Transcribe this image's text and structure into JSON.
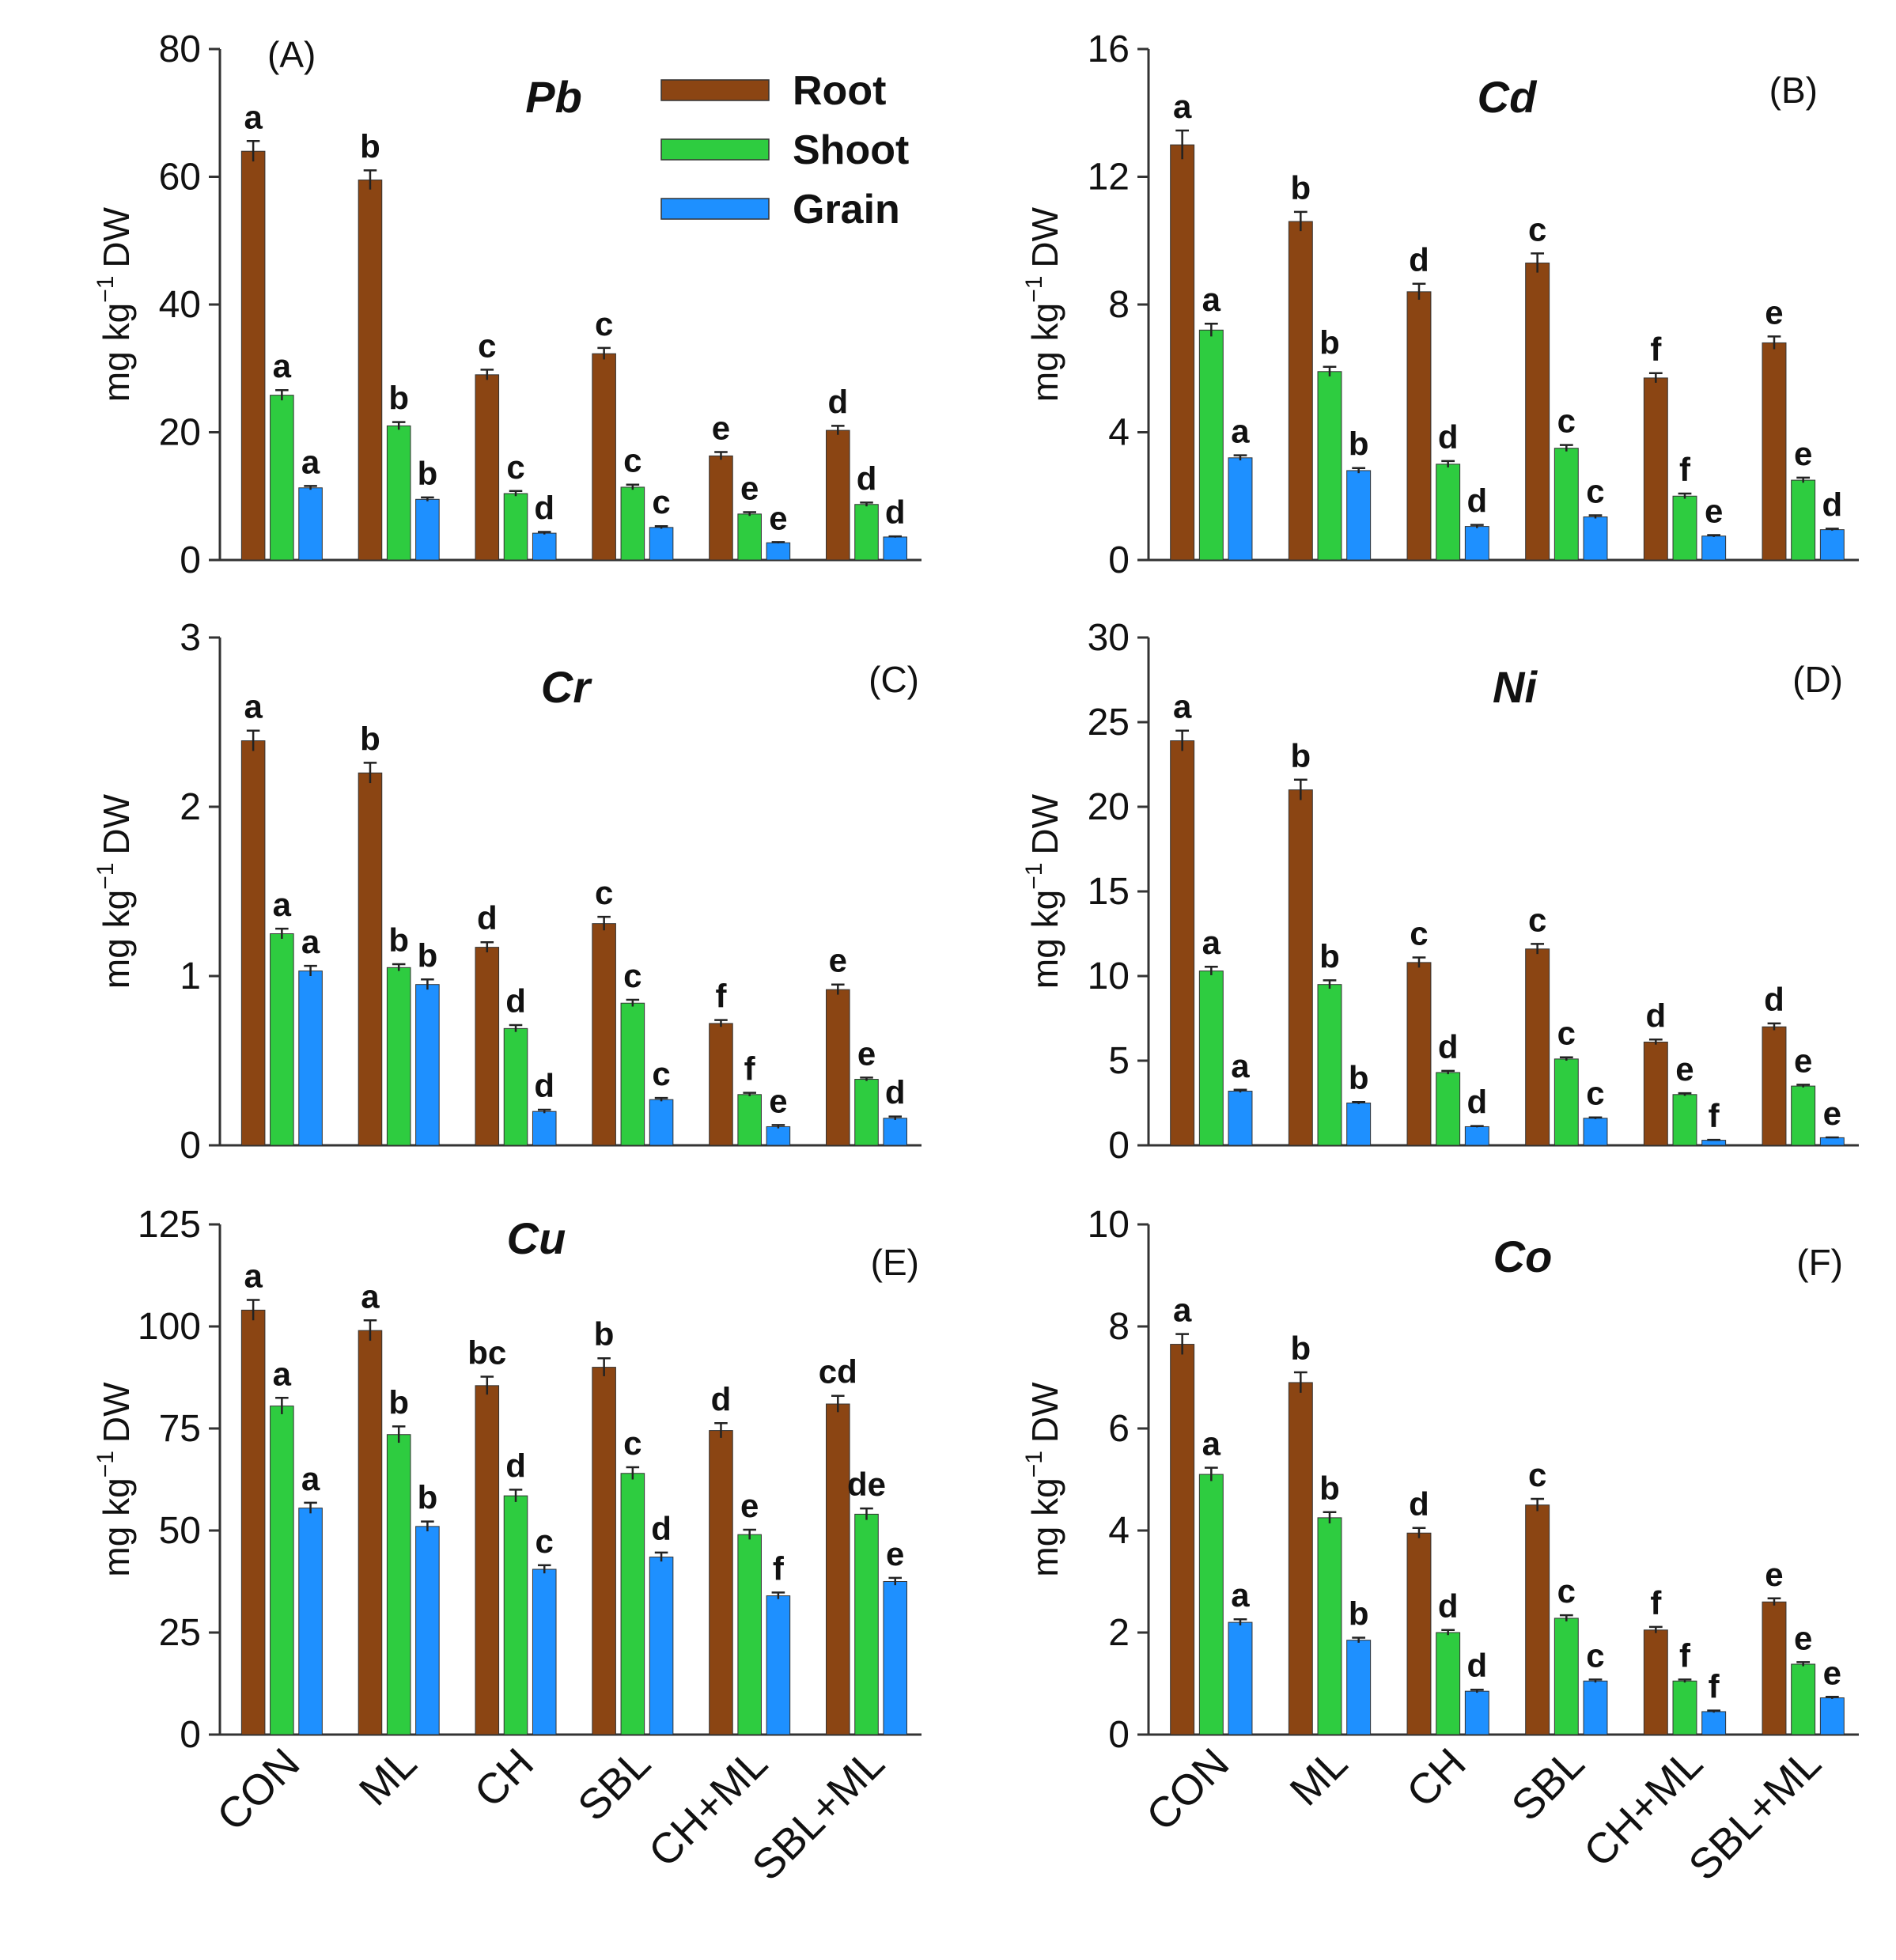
{
  "colors": {
    "Root": "#8B4513",
    "Shoot": "#2ECC40",
    "Grain": "#1E90FF",
    "axis": "#333333",
    "errorbar": "#222222"
  },
  "legend": {
    "placement": "top-right of panel A",
    "entries": [
      "Root",
      "Shoot",
      "Grain"
    ]
  },
  "x_categories": [
    "CON",
    "ML",
    "CH",
    "SBL",
    "CH+ML",
    "SBL+ML"
  ],
  "chart_data": [
    {
      "type": "bar",
      "panel": "(A)",
      "title": "Pb",
      "ylabel": "mg kg-1 DW",
      "ylabel_main": "mg kg",
      "ylabel_sup": "−1",
      "ylabel_tail": "DW",
      "ylim": [
        0,
        80
      ],
      "yticks": [
        0,
        20,
        40,
        60,
        80
      ],
      "categories": [
        "CON",
        "ML",
        "CH",
        "SBL",
        "CH+ML",
        "SBL+ML"
      ],
      "series": [
        {
          "name": "Root",
          "values": [
            64,
            59.5,
            29,
            32.3,
            16.3,
            20.3
          ],
          "errors": [
            1.6,
            1.5,
            0.8,
            0.9,
            0.6,
            0.7
          ],
          "letters": [
            "a",
            "b",
            "c",
            "c",
            "e",
            "d"
          ]
        },
        {
          "name": "Shoot",
          "values": [
            25.8,
            21,
            10.4,
            11.4,
            7.2,
            8.7
          ],
          "errors": [
            0.8,
            0.6,
            0.4,
            0.4,
            0.3,
            0.3
          ],
          "letters": [
            "a",
            "b",
            "c",
            "c",
            "e",
            "d"
          ]
        },
        {
          "name": "Grain",
          "values": [
            11.3,
            9.5,
            4.2,
            5.1,
            2.7,
            3.6
          ],
          "errors": [
            0.3,
            0.3,
            0.2,
            0.2,
            0.1,
            0.1
          ],
          "letters": [
            "a",
            "b",
            "d",
            "c",
            "e",
            "d"
          ]
        }
      ]
    },
    {
      "type": "bar",
      "panel": "(B)",
      "title": "Cd",
      "ylabel": "mg kg-1 DW",
      "ylabel_main": "mg kg",
      "ylabel_sup": "−1",
      "ylabel_tail": "DW",
      "ylim": [
        0,
        16
      ],
      "yticks": [
        0,
        4,
        8,
        12,
        16
      ],
      "categories": [
        "CON",
        "ML",
        "CH",
        "SBL",
        "CH+ML",
        "SBL+ML"
      ],
      "series": [
        {
          "name": "Root",
          "values": [
            13,
            10.6,
            8.4,
            9.3,
            5.7,
            6.8
          ],
          "errors": [
            0.45,
            0.3,
            0.25,
            0.3,
            0.15,
            0.2
          ],
          "letters": [
            "a",
            "b",
            "d",
            "c",
            "f",
            "e"
          ]
        },
        {
          "name": "Shoot",
          "values": [
            7.2,
            5.9,
            3,
            3.5,
            2,
            2.5
          ],
          "errors": [
            0.2,
            0.15,
            0.1,
            0.1,
            0.08,
            0.08
          ],
          "letters": [
            "a",
            "b",
            "d",
            "c",
            "f",
            "e"
          ]
        },
        {
          "name": "Grain",
          "values": [
            3.2,
            2.8,
            1.05,
            1.35,
            0.75,
            0.95
          ],
          "errors": [
            0.08,
            0.08,
            0.05,
            0.05,
            0.03,
            0.03
          ],
          "letters": [
            "a",
            "b",
            "d",
            "c",
            "e",
            "d"
          ]
        }
      ]
    },
    {
      "type": "bar",
      "panel": "(C)",
      "title": "Cr",
      "ylabel": "mg kg-1 DW",
      "ylabel_main": "mg kg",
      "ylabel_sup": "−1",
      "ylabel_tail": "DW",
      "ylim": [
        0,
        3
      ],
      "yticks": [
        0,
        1,
        2,
        3
      ],
      "categories": [
        "CON",
        "ML",
        "CH",
        "SBL",
        "CH+ML",
        "SBL+ML"
      ],
      "series": [
        {
          "name": "Root",
          "values": [
            2.39,
            2.2,
            1.17,
            1.31,
            0.72,
            0.92
          ],
          "errors": [
            0.06,
            0.06,
            0.03,
            0.04,
            0.02,
            0.03
          ],
          "letters": [
            "a",
            "b",
            "d",
            "c",
            "f",
            "e"
          ]
        },
        {
          "name": "Shoot",
          "values": [
            1.25,
            1.05,
            0.69,
            0.84,
            0.3,
            0.39
          ],
          "errors": [
            0.03,
            0.02,
            0.02,
            0.02,
            0.01,
            0.01
          ],
          "letters": [
            "a",
            "b",
            "d",
            "c",
            "f",
            "e"
          ]
        },
        {
          "name": "Grain",
          "values": [
            1.03,
            0.95,
            0.2,
            0.27,
            0.11,
            0.16
          ],
          "errors": [
            0.03,
            0.03,
            0.01,
            0.01,
            0.01,
            0.01
          ],
          "letters": [
            "a",
            "b",
            "d",
            "c",
            "e",
            "d"
          ]
        }
      ]
    },
    {
      "type": "bar",
      "panel": "(D)",
      "title": "Ni",
      "ylabel": "mg kg-1 DW",
      "ylabel_main": "mg kg",
      "ylabel_sup": "−1",
      "ylabel_tail": "DW",
      "ylim": [
        0,
        30
      ],
      "yticks": [
        0,
        5,
        10,
        15,
        20,
        25,
        30
      ],
      "categories": [
        "CON",
        "ML",
        "CH",
        "SBL",
        "CH+ML",
        "SBL+ML"
      ],
      "series": [
        {
          "name": "Root",
          "values": [
            23.9,
            21,
            10.8,
            11.6,
            6.1,
            7
          ],
          "errors": [
            0.6,
            0.6,
            0.3,
            0.3,
            0.15,
            0.2
          ],
          "letters": [
            "a",
            "b",
            "c",
            "c",
            "d",
            "d"
          ]
        },
        {
          "name": "Shoot",
          "values": [
            10.3,
            9.5,
            4.3,
            5.1,
            3,
            3.5
          ],
          "errors": [
            0.25,
            0.25,
            0.1,
            0.1,
            0.08,
            0.08
          ],
          "letters": [
            "a",
            "b",
            "d",
            "c",
            "e",
            "e"
          ]
        },
        {
          "name": "Grain",
          "values": [
            3.2,
            2.5,
            1.1,
            1.6,
            0.3,
            0.45
          ],
          "errors": [
            0.08,
            0.06,
            0.04,
            0.05,
            0.02,
            0.02
          ],
          "letters": [
            "a",
            "b",
            "d",
            "c",
            "f",
            "e"
          ]
        }
      ]
    },
    {
      "type": "bar",
      "panel": "(E)",
      "title": "Cu",
      "ylabel": "mg kg-1 DW",
      "ylabel_main": "mg kg",
      "ylabel_sup": "−1",
      "ylabel_tail": "DW",
      "ylim": [
        0,
        125
      ],
      "yticks": [
        0,
        25,
        50,
        75,
        100,
        125
      ],
      "categories": [
        "CON",
        "ML",
        "CH",
        "SBL",
        "CH+ML",
        "SBL+ML"
      ],
      "series": [
        {
          "name": "Root",
          "values": [
            104,
            99,
            85.5,
            90,
            74.5,
            81
          ],
          "errors": [
            2.5,
            2.5,
            2.2,
            2.2,
            1.8,
            2
          ],
          "letters": [
            "a",
            "a",
            "bc",
            "b",
            "d",
            "cd"
          ]
        },
        {
          "name": "Shoot",
          "values": [
            80.5,
            73.5,
            58.5,
            64,
            49,
            54
          ],
          "errors": [
            2,
            2,
            1.5,
            1.5,
            1.2,
            1.4
          ],
          "letters": [
            "a",
            "b",
            "d",
            "c",
            "e",
            "de"
          ]
        },
        {
          "name": "Grain",
          "values": [
            55.5,
            51,
            40.5,
            43.5,
            34,
            37.5
          ],
          "errors": [
            1.3,
            1.2,
            1,
            1.1,
            0.8,
            0.9
          ],
          "letters": [
            "a",
            "b",
            "c",
            "d",
            "f",
            "e"
          ]
        }
      ]
    },
    {
      "type": "bar",
      "panel": "(F)",
      "title": "Co",
      "ylabel": "mg kg-1 DW",
      "ylabel_main": "mg kg",
      "ylabel_sup": "−1",
      "ylabel_tail": "DW",
      "ylim": [
        0,
        10
      ],
      "yticks": [
        0,
        2,
        4,
        6,
        8,
        10
      ],
      "categories": [
        "CON",
        "ML",
        "CH",
        "SBL",
        "CH+ML",
        "SBL+ML"
      ],
      "series": [
        {
          "name": "Root",
          "values": [
            7.65,
            6.9,
            3.95,
            4.5,
            2.05,
            2.6
          ],
          "errors": [
            0.2,
            0.2,
            0.1,
            0.12,
            0.06,
            0.07
          ],
          "letters": [
            "a",
            "b",
            "d",
            "c",
            "f",
            "e"
          ]
        },
        {
          "name": "Shoot",
          "values": [
            5.1,
            4.25,
            2,
            2.28,
            1.05,
            1.38
          ],
          "errors": [
            0.13,
            0.11,
            0.05,
            0.06,
            0.03,
            0.04
          ],
          "letters": [
            "a",
            "b",
            "d",
            "c",
            "f",
            "e"
          ]
        },
        {
          "name": "Grain",
          "values": [
            2.2,
            1.85,
            0.85,
            1.05,
            0.45,
            0.72
          ],
          "errors": [
            0.06,
            0.05,
            0.03,
            0.03,
            0.02,
            0.02
          ],
          "letters": [
            "a",
            "b",
            "d",
            "c",
            "f",
            "e"
          ]
        }
      ]
    }
  ]
}
